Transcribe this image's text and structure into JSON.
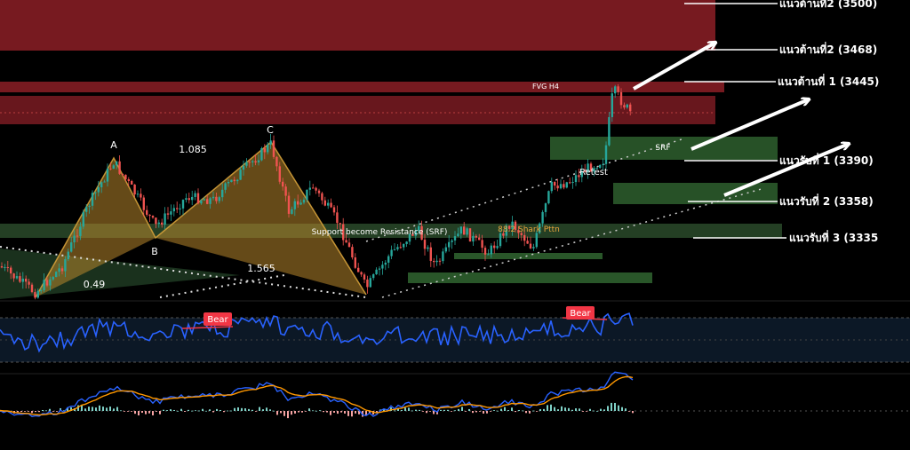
{
  "chart_data": {
    "type": "candlestick",
    "title": "",
    "instrument_note": "",
    "colors": {
      "background": "#000000",
      "candle_up": "#26a69a",
      "candle_down": "#ef5350",
      "resistance_zone": "#8c1e26",
      "support_zone": "#2e5f2e",
      "harmonic_fill": "#b8862b",
      "rsi_line": "#2962ff",
      "macd_line": "#2962ff",
      "signal_line": "#ff9800",
      "arrow": "#ffffff",
      "bear_badge": "#f23645"
    },
    "levels": [
      {
        "label": "แนวต้านที่2 (3500)",
        "value": 3500
      },
      {
        "label": "แนวต้านที่2 (3468)",
        "value": 3468
      },
      {
        "label": "แนวต้านที่ 1 (3445)",
        "value": 3445
      },
      {
        "label": "แนวรับที่ 1 (3390)",
        "value": 3390
      },
      {
        "label": "แนวรับที่ 2 (3358)",
        "value": 3358
      },
      {
        "label": "แนวรับที่ 3 (3335",
        "value": 3335
      }
    ],
    "harmonic": {
      "points": [
        "A",
        "B",
        "C"
      ],
      "ratios": [
        "1.085",
        "1.565",
        "0.49"
      ],
      "name": "88.2 Shark Pttn"
    },
    "annotations": {
      "fvg": "FVG H4",
      "srf": "SRF",
      "retest": "Retest",
      "support_resistance": "Support become Resistance (SRF)"
    },
    "rsi": {
      "badges": [
        "Bear",
        "Bear"
      ],
      "upper_band": 70,
      "lower_band": 30
    },
    "macd": {
      "zero_line": 0
    }
  }
}
